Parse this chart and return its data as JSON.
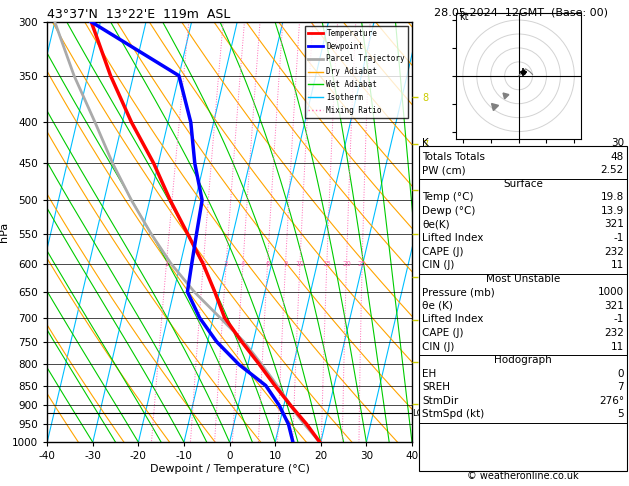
{
  "title_left": "43°37'N  13°22'E  119m  ASL",
  "title_right": "28.05.2024  12GMT  (Base: 00)",
  "xlabel": "Dewpoint / Temperature (°C)",
  "ylabel_left": "hPa",
  "copyright": "© weatheronline.co.uk",
  "pressure_levels": [
    300,
    350,
    400,
    450,
    500,
    550,
    600,
    650,
    700,
    750,
    800,
    850,
    900,
    950,
    1000
  ],
  "temp_range": [
    -40,
    40
  ],
  "temp_ticks": [
    -40,
    -30,
    -20,
    -10,
    0,
    10,
    20,
    30,
    40
  ],
  "isotherm_color": "#00bfff",
  "dry_adiabat_color": "#ffa500",
  "wet_adiabat_color": "#00cc00",
  "mixing_ratio_color": "#ff69b4",
  "mixing_ratio_values": [
    1,
    2,
    3,
    4,
    6,
    8,
    10,
    15,
    20,
    25
  ],
  "km_ticks": [
    1,
    2,
    3,
    4,
    5,
    6,
    7,
    8
  ],
  "km_pressures": [
    896,
    795,
    705,
    623,
    550,
    485,
    426,
    372
  ],
  "lcl_pressure": 920,
  "temperature_data": {
    "pressure": [
      1000,
      950,
      900,
      850,
      800,
      750,
      700,
      650,
      600,
      550,
      500,
      450,
      400,
      350,
      300
    ],
    "temp": [
      19.8,
      16.0,
      11.5,
      7.0,
      2.5,
      -2.5,
      -7.5,
      -11.0,
      -15.0,
      -20.0,
      -25.5,
      -31.0,
      -38.0,
      -45.0,
      -52.0
    ],
    "color": "#ff0000",
    "linewidth": 2.5
  },
  "dewpoint_data": {
    "pressure": [
      1000,
      950,
      900,
      850,
      800,
      750,
      700,
      650,
      600,
      550,
      500,
      450,
      400,
      350,
      300
    ],
    "temp": [
      13.9,
      12.0,
      9.0,
      5.0,
      -2.0,
      -8.0,
      -13.0,
      -17.0,
      -17.5,
      -18.0,
      -18.5,
      -22.0,
      -25.0,
      -30.0,
      -52.0
    ],
    "color": "#0000ff",
    "linewidth": 2.5
  },
  "parcel_data": {
    "pressure": [
      1000,
      950,
      920,
      900,
      850,
      800,
      750,
      700,
      650,
      600,
      550,
      500,
      450,
      400,
      350,
      300
    ],
    "temp": [
      19.8,
      15.5,
      13.0,
      11.5,
      7.5,
      3.0,
      -2.0,
      -8.5,
      -15.5,
      -22.0,
      -28.0,
      -34.0,
      -40.0,
      -46.0,
      -53.0,
      -60.0
    ],
    "color": "#aaaaaa",
    "linewidth": 2.0
  },
  "skew_factor": 18.0,
  "p_ref": 1000,
  "legend_items": [
    {
      "label": "Temperature",
      "color": "#ff0000",
      "lw": 2,
      "ls": "-"
    },
    {
      "label": "Dewpoint",
      "color": "#0000ff",
      "lw": 2,
      "ls": "-"
    },
    {
      "label": "Parcel Trajectory",
      "color": "#aaaaaa",
      "lw": 2,
      "ls": "-"
    },
    {
      "label": "Dry Adiabat",
      "color": "#ffa500",
      "lw": 1,
      "ls": "-"
    },
    {
      "label": "Wet Adiabat",
      "color": "#00cc00",
      "lw": 1,
      "ls": "-"
    },
    {
      "label": "Isotherm",
      "color": "#00bfff",
      "lw": 1,
      "ls": "-"
    },
    {
      "label": "Mixing Ratio",
      "color": "#ff69b4",
      "lw": 1,
      "ls": ":"
    }
  ],
  "stats": [
    [
      "K",
      "30"
    ],
    [
      "Totals Totals",
      "48"
    ],
    [
      "PW (cm)",
      "2.52"
    ],
    [
      "__Surface__",
      ""
    ],
    [
      "Temp (°C)",
      "19.8"
    ],
    [
      "Dewp (°C)",
      "13.9"
    ],
    [
      "θe(K)",
      "321"
    ],
    [
      "Lifted Index",
      "-1"
    ],
    [
      "CAPE (J)",
      "232"
    ],
    [
      "CIN (J)",
      "11"
    ],
    [
      "__Most Unstable__",
      ""
    ],
    [
      "Pressure (mb)",
      "1000"
    ],
    [
      "θe (K)",
      "321"
    ],
    [
      "Lifted Index",
      "-1"
    ],
    [
      "CAPE (J)",
      "232"
    ],
    [
      "CIN (J)",
      "11"
    ],
    [
      "__Hodograph__",
      ""
    ],
    [
      "EH",
      "0"
    ],
    [
      "SREH",
      "7"
    ],
    [
      "StmDir",
      "276°"
    ],
    [
      "StmSpd (kt)",
      "5"
    ]
  ],
  "hodograph_rings": [
    10,
    20,
    30,
    40
  ]
}
